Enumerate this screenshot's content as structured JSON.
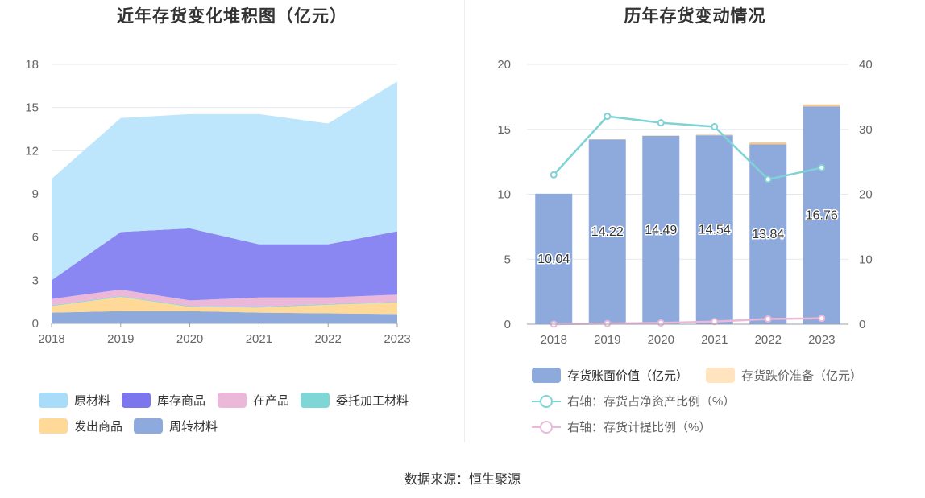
{
  "source_text": "数据来源：恒生聚源",
  "chart_data": [
    {
      "type": "area",
      "stacked": true,
      "title": "近年存货变化堆积图（亿元）",
      "x": [
        "2018",
        "2019",
        "2020",
        "2021",
        "2022",
        "2023"
      ],
      "ylim": [
        0,
        18
      ],
      "yticks": [
        "0",
        "3",
        "6",
        "9",
        "12",
        "15",
        "18"
      ],
      "grid": true,
      "legend_position": "bottom",
      "series": [
        {
          "name": "周转材料",
          "color": "#8eaadc",
          "values": [
            0.75,
            0.85,
            0.85,
            0.75,
            0.7,
            0.65
          ]
        },
        {
          "name": "发出商品",
          "color": "#ffd998",
          "values": [
            0.45,
            1.0,
            0.3,
            0.35,
            0.6,
            0.8
          ]
        },
        {
          "name": "委托加工材料",
          "color": "#7ed6d6",
          "values": [
            0.05,
            0.05,
            0.05,
            0.05,
            0.05,
            0.05
          ]
        },
        {
          "name": "在产品",
          "color": "#ebb8da",
          "values": [
            0.45,
            0.45,
            0.4,
            0.65,
            0.45,
            0.5
          ]
        },
        {
          "name": "库存商品",
          "color": "#8b87f2",
          "values": [
            1.3,
            4.0,
            5.0,
            3.7,
            3.7,
            4.4
          ]
        },
        {
          "name": "原材料",
          "color": "#bde5fb",
          "values": [
            7.04,
            7.92,
            7.94,
            9.04,
            8.39,
            10.41
          ]
        }
      ],
      "legend_order": [
        "原材料",
        "库存商品",
        "在产品",
        "委托加工材料",
        "发出商品",
        "周转材料"
      ],
      "legend_colors": [
        "#a8dcf8",
        "#7b76ee",
        "#ebb8da",
        "#7ed6d6",
        "#ffd998",
        "#8eaadc"
      ]
    },
    {
      "type": "bar",
      "title": "历年存货变动情况",
      "categories": [
        "2018",
        "2019",
        "2020",
        "2021",
        "2022",
        "2023"
      ],
      "ylim": [
        0,
        20
      ],
      "yticks": [
        "0",
        "5",
        "10",
        "15",
        "20"
      ],
      "y2lim": [
        0,
        40
      ],
      "y2ticks": [
        "0",
        "10",
        "20",
        "30",
        "40"
      ],
      "grid": true,
      "legend_position": "bottom",
      "series": [
        {
          "name": "存货账面价值（亿元）",
          "type": "bar",
          "color": "#8eaadc",
          "values": [
            10.04,
            14.22,
            14.49,
            14.54,
            13.84,
            16.76
          ],
          "labels": [
            "10.04",
            "14.22",
            "14.49",
            "14.54",
            "13.84",
            "16.76"
          ]
        },
        {
          "name": "存货跌价准备（亿元）",
          "type": "bar",
          "color": "#ffe4bf",
          "values": [
            0.0,
            0.02,
            0.03,
            0.05,
            0.15,
            0.16
          ]
        },
        {
          "name": "右轴：存货占净资产比例（%）",
          "type": "line",
          "axis": "right",
          "color": "#7fd3d6",
          "values": [
            23.0,
            32.0,
            31.0,
            30.4,
            22.3,
            24.1
          ]
        },
        {
          "name": "右轴：存货计提比例（%）",
          "type": "line",
          "axis": "right",
          "color": "#ebb8da",
          "values": [
            0.0,
            0.1,
            0.2,
            0.4,
            0.8,
            0.9
          ]
        }
      ]
    }
  ]
}
